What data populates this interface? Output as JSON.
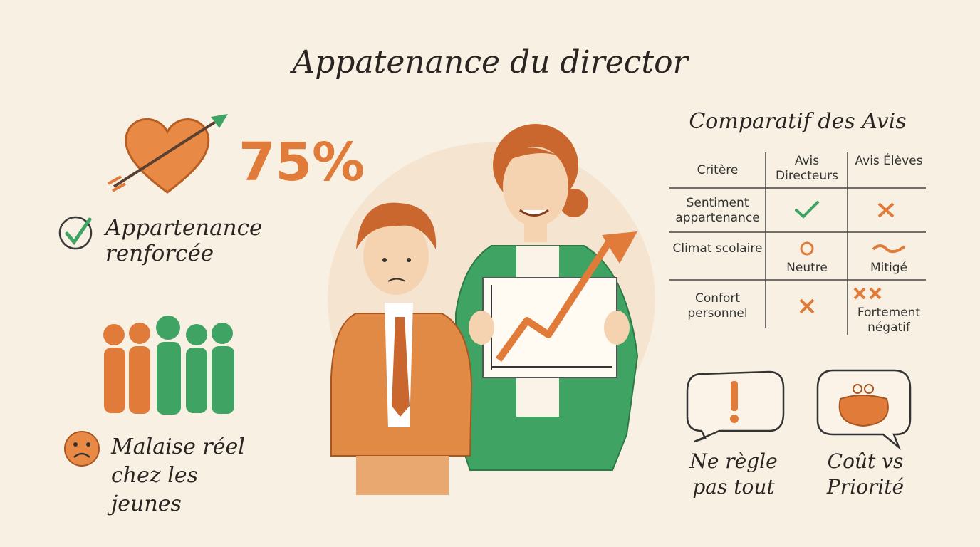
{
  "header": {
    "title": "Appatenance du director"
  },
  "left": {
    "stat": "75%",
    "positive": "Appartenance renforcée",
    "negative": "Malaise réel chez les jeunes"
  },
  "table": {
    "title": "Comparatif des Avis",
    "headers": [
      "Critère",
      "Avis Directeurs",
      "Avis Élèves"
    ],
    "rows": [
      {
        "criterion": "Sentiment appartenance"
      },
      {
        "criterion": "Climat scolaire",
        "directors": "Neutre",
        "students": "Mitigé"
      },
      {
        "criterion": "Confort personnel",
        "students": "Fortement négatif"
      }
    ]
  },
  "bubbles": [
    "Ne règle pas tout",
    "Coût vs Priorité"
  ]
}
